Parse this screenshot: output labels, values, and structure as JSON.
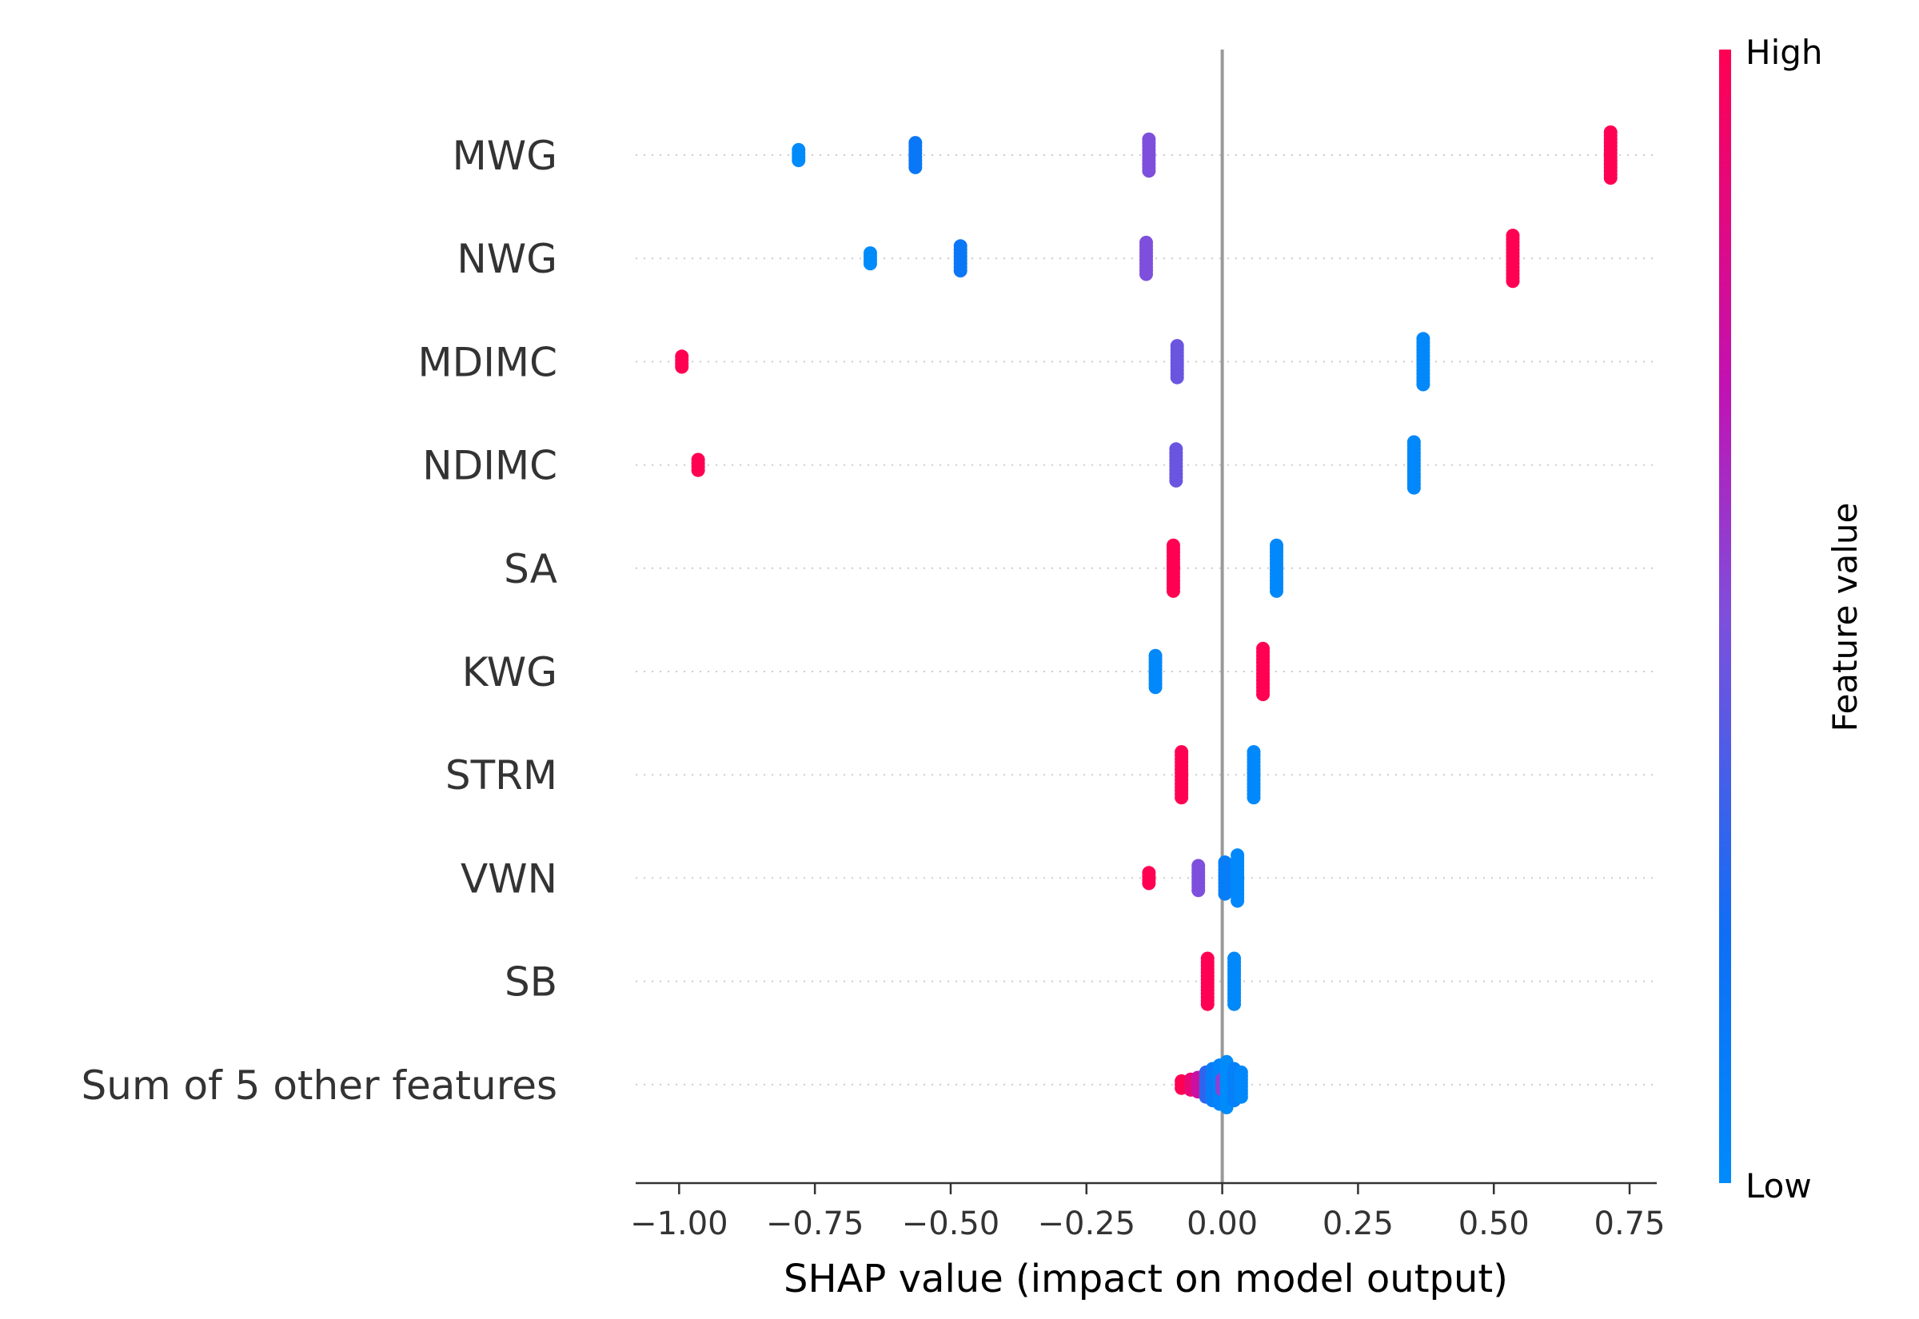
{
  "chart_data": {
    "type": "scatter",
    "subtype": "shap-beeswarm",
    "title": "",
    "xlabel": "SHAP value (impact on model output)",
    "ylabel": "",
    "xlim": [
      -1.08,
      0.8
    ],
    "x_ticks": [
      -1.0,
      -0.75,
      -0.5,
      -0.25,
      0.0,
      0.25,
      0.5,
      0.75
    ],
    "x_tick_labels": [
      "−1.00",
      "−0.75",
      "−0.50",
      "−0.25",
      "0.00",
      "0.25",
      "0.50",
      "0.75"
    ],
    "grid": "dotted row lines",
    "zero_line": 0.0,
    "colorbar": {
      "title": "Feature value",
      "high_label": "High",
      "low_label": "Low",
      "low_color": "#008bfb",
      "high_color": "#ff0052",
      "placement": "right"
    },
    "features": [
      {
        "name": "MWG",
        "points": [
          {
            "x": -0.78,
            "v": 0.0,
            "n": 4
          },
          {
            "x": -0.565,
            "v": 0.15,
            "n": 8
          },
          {
            "x": -0.135,
            "v": 0.5,
            "n": 10
          },
          {
            "x": 0.715,
            "v": 1.0,
            "n": 14
          }
        ]
      },
      {
        "name": "NWG",
        "points": [
          {
            "x": -0.648,
            "v": 0.0,
            "n": 4
          },
          {
            "x": -0.482,
            "v": 0.15,
            "n": 8
          },
          {
            "x": -0.14,
            "v": 0.5,
            "n": 10
          },
          {
            "x": 0.535,
            "v": 1.0,
            "n": 14
          }
        ]
      },
      {
        "name": "MDIMC",
        "points": [
          {
            "x": -0.995,
            "v": 1.0,
            "n": 4
          },
          {
            "x": -0.083,
            "v": 0.45,
            "n": 10
          },
          {
            "x": 0.37,
            "v": 0.02,
            "n": 14
          }
        ]
      },
      {
        "name": "NDIMC",
        "points": [
          {
            "x": -0.965,
            "v": 1.0,
            "n": 4
          },
          {
            "x": -0.085,
            "v": 0.45,
            "n": 10
          },
          {
            "x": 0.353,
            "v": 0.02,
            "n": 14
          }
        ]
      },
      {
        "name": "SA",
        "points": [
          {
            "x": -0.09,
            "v": 1.0,
            "n": 14
          },
          {
            "x": 0.1,
            "v": 0.02,
            "n": 14
          }
        ]
      },
      {
        "name": "KWG",
        "points": [
          {
            "x": -0.123,
            "v": 0.02,
            "n": 10
          },
          {
            "x": 0.075,
            "v": 1.0,
            "n": 14
          }
        ]
      },
      {
        "name": "STRM",
        "points": [
          {
            "x": -0.075,
            "v": 1.0,
            "n": 14
          },
          {
            "x": 0.058,
            "v": 0.02,
            "n": 14
          }
        ]
      },
      {
        "name": "VWN",
        "points": [
          {
            "x": -0.135,
            "v": 1.0,
            "n": 4
          },
          {
            "x": -0.044,
            "v": 0.5,
            "n": 8
          },
          {
            "x": 0.005,
            "v": 0.1,
            "n": 10
          },
          {
            "x": 0.028,
            "v": 0.02,
            "n": 14
          }
        ]
      },
      {
        "name": "SB",
        "points": [
          {
            "x": -0.027,
            "v": 1.0,
            "n": 14
          },
          {
            "x": 0.022,
            "v": 0.02,
            "n": 14
          }
        ]
      },
      {
        "name": "Sum of 5 other features",
        "points": [
          {
            "x": -0.075,
            "v": 1.0,
            "n": 3
          },
          {
            "x": -0.058,
            "v": 0.9,
            "n": 4
          },
          {
            "x": -0.045,
            "v": 0.75,
            "n": 5
          },
          {
            "x": -0.03,
            "v": 0.3,
            "n": 8
          },
          {
            "x": -0.018,
            "v": 0.1,
            "n": 10
          },
          {
            "x": -0.005,
            "v": 0.05,
            "n": 12
          },
          {
            "x": 0.0,
            "v": 0.55,
            "n": 4
          },
          {
            "x": 0.008,
            "v": 0.0,
            "n": 14
          },
          {
            "x": 0.022,
            "v": 0.08,
            "n": 10
          },
          {
            "x": 0.035,
            "v": 0.02,
            "n": 8
          }
        ]
      }
    ]
  }
}
